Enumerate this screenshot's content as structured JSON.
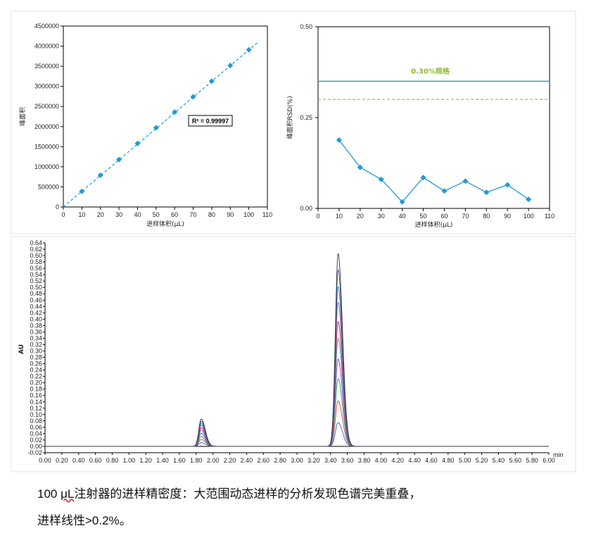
{
  "chart_data": [
    {
      "type": "scatter",
      "xlabel": "进样体积(μL)",
      "ylabel": "峰面积",
      "xlim": [
        0,
        110
      ],
      "ylim": [
        0,
        4500000
      ],
      "xticks": [
        0,
        10,
        20,
        30,
        40,
        50,
        60,
        70,
        80,
        90,
        100,
        110
      ],
      "yticks": [
        0,
        500000,
        1000000,
        1500000,
        2000000,
        2500000,
        3000000,
        3500000,
        4000000,
        4500000
      ],
      "x": [
        10,
        20,
        30,
        40,
        50,
        60,
        70,
        80,
        90,
        100
      ],
      "y": [
        390000,
        790000,
        1180000,
        1580000,
        1970000,
        2360000,
        2740000,
        3130000,
        3520000,
        3910000
      ],
      "marker_color": "#1f9ad6",
      "trendline": {
        "style": "dashed",
        "from": [
          0,
          0
        ],
        "to": [
          105,
          4100000
        ],
        "color": "#1f9ad6"
      },
      "annotation": "R² = 0.99997"
    },
    {
      "type": "line",
      "xlabel": "进样体积(μL)",
      "ylabel": "峰面积RSD(%)",
      "xlim": [
        0,
        110
      ],
      "ylim": [
        0,
        0.5
      ],
      "xticks": [
        0,
        10,
        20,
        30,
        40,
        50,
        60,
        70,
        80,
        90,
        100,
        110
      ],
      "yticks": [
        0.0,
        0.25,
        0.5
      ],
      "ytick_labels": [
        "0.00",
        "0.25",
        "0.50"
      ],
      "x": [
        10,
        20,
        30,
        40,
        50,
        60,
        70,
        80,
        90,
        100
      ],
      "y": [
        0.188,
        0.113,
        0.08,
        0.018,
        0.085,
        0.048,
        0.075,
        0.044,
        0.065,
        0.025
      ],
      "color": "#1f9ad6",
      "reference_lines": [
        {
          "value": 0.35,
          "style": "solid",
          "color": "#1f8fc4"
        },
        {
          "value": 0.3,
          "style": "dashed",
          "color": "#9ab842"
        }
      ],
      "annotation": "0.30%规格"
    },
    {
      "type": "line",
      "xlabel": "min",
      "ylabel": "AU",
      "xlim": [
        0,
        6.0
      ],
      "ylim": [
        -0.02,
        0.64
      ],
      "xtick_step": 0.2,
      "ytick_step": 0.02,
      "series": [
        {
          "color": "#3a63c4",
          "peak1_height": 0.012,
          "peak2_height": 0.075
        },
        {
          "color": "#d8442f",
          "peak1_height": 0.022,
          "peak2_height": 0.143
        },
        {
          "color": "#2e9a5a",
          "peak1_height": 0.031,
          "peak2_height": 0.213
        },
        {
          "color": "#8a3fb8",
          "peak1_height": 0.041,
          "peak2_height": 0.275
        },
        {
          "color": "#2c9bd6",
          "peak1_height": 0.05,
          "peak2_height": 0.34
        },
        {
          "color": "#b8223a",
          "peak1_height": 0.058,
          "peak2_height": 0.393
        },
        {
          "color": "#c63da8",
          "peak1_height": 0.066,
          "peak2_height": 0.454
        },
        {
          "color": "#1b8a8a",
          "peak1_height": 0.072,
          "peak2_height": 0.503
        },
        {
          "color": "#3e46b6",
          "peak1_height": 0.079,
          "peak2_height": 0.556
        },
        {
          "color": "#333333",
          "peak1_height": 0.086,
          "peak2_height": 0.607
        }
      ],
      "peak1_time": 1.86,
      "peak2_time": 3.49
    }
  ],
  "caption": {
    "line1_num": "100 ",
    "line1_unit": "μL",
    "line1_text": "注射器的进样精密度：大范围动态进样的分析发现色谱完美重叠，",
    "line2_text": "进样线性",
    "line2_num": ">0.2%",
    "line2_end": "。"
  }
}
